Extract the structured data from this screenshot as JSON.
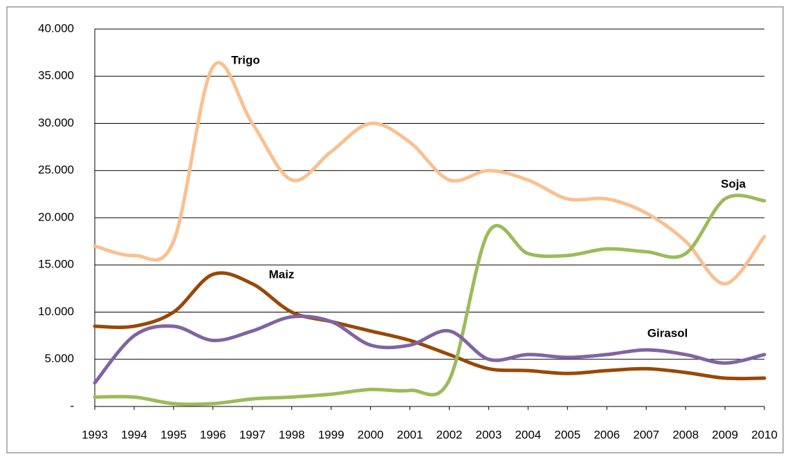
{
  "chart_data": {
    "type": "line",
    "x": [
      1993,
      1994,
      1995,
      1996,
      1997,
      1998,
      1999,
      2000,
      2001,
      2002,
      2003,
      2004,
      2005,
      2006,
      2007,
      2008,
      2009,
      2010
    ],
    "xlim": [
      1993,
      2010
    ],
    "xticks": [
      1993,
      1994,
      1995,
      1996,
      1997,
      1998,
      1999,
      2000,
      2001,
      2002,
      2003,
      2004,
      2005,
      2006,
      2007,
      2008,
      2009,
      2010
    ],
    "ylim": [
      0,
      40000
    ],
    "yticks": [
      {
        "value": 0,
        "label": "-"
      },
      {
        "value": 5000,
        "label": "5.000"
      },
      {
        "value": 10000,
        "label": "10.000"
      },
      {
        "value": 15000,
        "label": "15.000"
      },
      {
        "value": 20000,
        "label": "20.000"
      },
      {
        "value": 25000,
        "label": "25.000"
      },
      {
        "value": 30000,
        "label": "30.000"
      },
      {
        "value": 35000,
        "label": "35.000"
      },
      {
        "value": 40000,
        "label": "40.000"
      }
    ],
    "grid": true,
    "series": [
      {
        "name": "Trigo",
        "color": "#fac090",
        "values": [
          17000,
          16000,
          17500,
          36000,
          30000,
          24000,
          27000,
          30000,
          28000,
          24000,
          25000,
          24000,
          22000,
          22000,
          20500,
          17500,
          13000,
          18000
        ]
      },
      {
        "name": "Maiz",
        "color": "#984807",
        "values": [
          8500,
          8500,
          10000,
          14000,
          13000,
          10000,
          9000,
          8000,
          7000,
          5500,
          4000,
          3800,
          3500,
          3800,
          4000,
          3600,
          3000,
          3000
        ]
      },
      {
        "name": "Soja",
        "color": "#9bbb59",
        "values": [
          1000,
          1000,
          300,
          300,
          800,
          1000,
          1300,
          1800,
          1700,
          2800,
          18500,
          16200,
          16000,
          16700,
          16400,
          16200,
          22000,
          21800
        ]
      },
      {
        "name": "Girasol",
        "color": "#8064a2",
        "values": [
          2500,
          7500,
          8500,
          7000,
          8000,
          9500,
          9000,
          6500,
          6500,
          8000,
          5000,
          5500,
          5200,
          5500,
          6000,
          5500,
          4600,
          5500
        ]
      }
    ]
  }
}
